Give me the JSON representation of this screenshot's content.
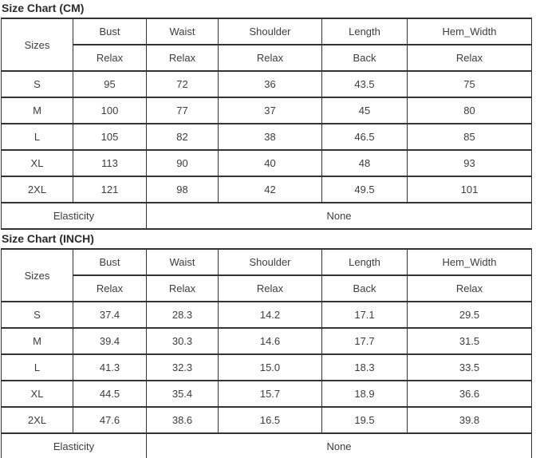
{
  "colors": {
    "table_border": "#333333",
    "cell_text": "#3d3d3d",
    "title_text": "#2b2b2b",
    "background": "#ffffff"
  },
  "chart_data": [
    {
      "type": "table",
      "title": "Size Chart (CM)",
      "header": {
        "sizes": "Sizes",
        "cols": [
          "Bust",
          "Waist",
          "Shoulder",
          "Length",
          "Hem_Width"
        ],
        "sub": [
          "Relax",
          "Relax",
          "Relax",
          "Back",
          "Relax"
        ]
      },
      "rows": [
        {
          "size": "S",
          "v": [
            "95",
            "72",
            "36",
            "43.5",
            "75"
          ]
        },
        {
          "size": "M",
          "v": [
            "100",
            "77",
            "37",
            "45",
            "80"
          ]
        },
        {
          "size": "L",
          "v": [
            "105",
            "82",
            "38",
            "46.5",
            "85"
          ]
        },
        {
          "size": "XL",
          "v": [
            "113",
            "90",
            "40",
            "48",
            "93"
          ]
        },
        {
          "size": "2XL",
          "v": [
            "121",
            "98",
            "42",
            "49.5",
            "101"
          ]
        }
      ],
      "elasticity_label": "Elasticity",
      "elasticity_value": "None"
    },
    {
      "type": "table",
      "title": "Size Chart (INCH)",
      "header": {
        "sizes": "Sizes",
        "cols": [
          "Bust",
          "Waist",
          "Shoulder",
          "Length",
          "Hem_Width"
        ],
        "sub": [
          "Relax",
          "Relax",
          "Relax",
          "Back",
          "Relax"
        ]
      },
      "rows": [
        {
          "size": "S",
          "v": [
            "37.4",
            "28.3",
            "14.2",
            "17.1",
            "29.5"
          ]
        },
        {
          "size": "M",
          "v": [
            "39.4",
            "30.3",
            "14.6",
            "17.7",
            "31.5"
          ]
        },
        {
          "size": "L",
          "v": [
            "41.3",
            "32.3",
            "15.0",
            "18.3",
            "33.5"
          ]
        },
        {
          "size": "XL",
          "v": [
            "44.5",
            "35.4",
            "15.7",
            "18.9",
            "36.6"
          ]
        },
        {
          "size": "2XL",
          "v": [
            "47.6",
            "38.6",
            "16.5",
            "19.5",
            "39.8"
          ]
        }
      ],
      "elasticity_label": "Elasticity",
      "elasticity_value": "None"
    }
  ]
}
